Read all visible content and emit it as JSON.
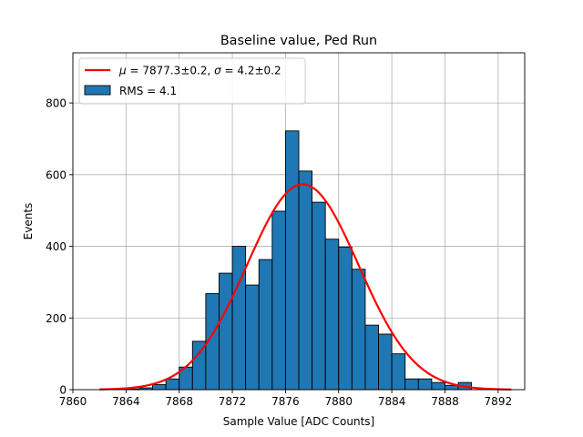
{
  "chart_data": {
    "type": "bar",
    "title": "Baseline value, Ped Run",
    "xlabel": "Sample Value [ADC Counts]",
    "ylabel": "Events",
    "xlim": [
      7860,
      7894
    ],
    "ylim": [
      0,
      940
    ],
    "grid": true,
    "legend_position": "upper-left",
    "xticks": [
      7860,
      7864,
      7868,
      7872,
      7876,
      7880,
      7884,
      7888,
      7892
    ],
    "yticks": [
      0,
      200,
      400,
      600,
      800
    ],
    "histogram": {
      "name": "RMS = 4.1",
      "color": "#1f77b4",
      "edgecolor": "#000000",
      "bin_edges": [
        7862.0,
        7863.0,
        7864.0,
        7865.0,
        7866.0,
        7867.0,
        7868.0,
        7869.0,
        7870.0,
        7871.0,
        7872.0,
        7873.0,
        7874.0,
        7875.0,
        7876.0,
        7877.0,
        7878.0,
        7879.0,
        7880.0,
        7881.0,
        7882.0,
        7883.0,
        7884.0,
        7885.0,
        7886.0,
        7887.0,
        7888.0,
        7889.0,
        7890.0,
        7891.0,
        7892.0,
        7893.0
      ],
      "counts": [
        0,
        0,
        2,
        5,
        14,
        30,
        63,
        135,
        268,
        325,
        400,
        292,
        363,
        498,
        722,
        610,
        523,
        420,
        398,
        336,
        180,
        155,
        100,
        30,
        30,
        20,
        12,
        20,
        0,
        0,
        0
      ]
    },
    "fit": {
      "name": "μ = 7877.3±0.2, σ = 4.2±0.2",
      "label_tex": {
        "mu_symbol": "μ",
        "mu_text": " = 7877.3±0.2, ",
        "sigma_symbol": "σ",
        "sigma_text": " = 4.2±0.2"
      },
      "color": "#ff0000",
      "mu": 7877.3,
      "sigma": 4.2,
      "amplitude": 573,
      "x_range": [
        7862,
        7893
      ]
    }
  }
}
